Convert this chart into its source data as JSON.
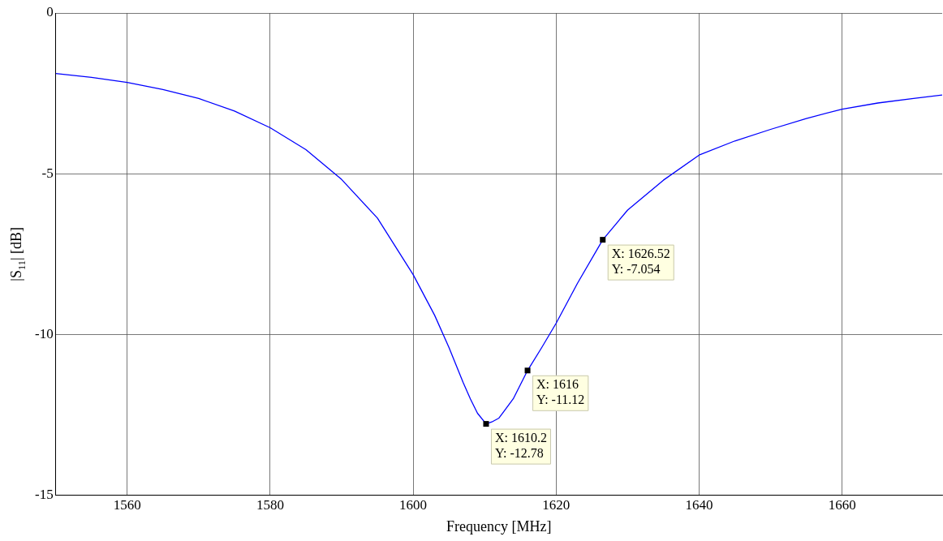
{
  "chart_data": {
    "type": "line",
    "xlabel": "Frequency [MHz]",
    "ylabel": "|S$_{11}$| [dB]",
    "series": [
      {
        "color": "#0000ff",
        "x": [
          1550,
          1555,
          1560,
          1565,
          1570,
          1575,
          1580,
          1585,
          1590,
          1595,
          1600,
          1603,
          1605,
          1607,
          1608,
          1609,
          1610.2,
          1611,
          1612,
          1614,
          1616,
          1618,
          1620,
          1623,
          1626.52,
          1630,
          1635,
          1640,
          1645,
          1650,
          1655,
          1660,
          1665,
          1670,
          1674
        ],
        "values": [
          -1.88,
          -2.0,
          -2.16,
          -2.38,
          -2.66,
          -3.05,
          -3.57,
          -4.25,
          -5.18,
          -6.38,
          -8.14,
          -9.4,
          -10.4,
          -11.5,
          -12.0,
          -12.45,
          -12.78,
          -12.72,
          -12.6,
          -12.0,
          -11.12,
          -10.4,
          -9.65,
          -8.4,
          -7.054,
          -6.13,
          -5.2,
          -4.42,
          -3.98,
          -3.62,
          -3.28,
          -2.99,
          -2.8,
          -2.66,
          -2.55
        ]
      }
    ],
    "xlim": [
      1550,
      1674
    ],
    "xticks": [
      1560,
      1580,
      1600,
      1620,
      1640,
      1660
    ],
    "ylim": [
      -15,
      0
    ],
    "yticks": [
      -15,
      -10,
      -5,
      0
    ],
    "grid": true,
    "legend": false,
    "marker": "none",
    "line_style": "solid",
    "annotations": [
      {
        "text": "X: 1626.52\nY: -7.054",
        "x": 1626.52,
        "y": -7.054
      },
      {
        "text": "X: 1616\nY: -11.12",
        "x": 1616,
        "y": -11.12
      },
      {
        "text": "X: 1610.2\nY: -12.78",
        "x": 1610.2,
        "y": -12.78
      }
    ]
  }
}
